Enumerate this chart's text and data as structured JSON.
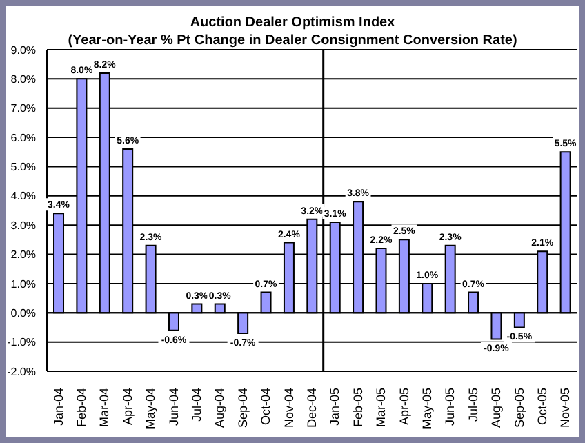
{
  "chart_data": {
    "type": "bar",
    "title": "Auction Dealer Optimism Index",
    "subtitle": "(Year-on-Year % Pt Change in Dealer Consignment Conversion Rate)",
    "categories": [
      "Jan-04",
      "Feb-04",
      "Mar-04",
      "Apr-04",
      "May-04",
      "Jun-04",
      "Jul-04",
      "Aug-04",
      "Sep-04",
      "Oct-04",
      "Nov-04",
      "Dec-04",
      "Jan-05",
      "Feb-05",
      "Mar-05",
      "Apr-05",
      "May-05",
      "Jun-05",
      "Jul-05",
      "Aug-05",
      "Sep-05",
      "Oct-05",
      "Nov-05"
    ],
    "values": [
      3.4,
      8.0,
      8.2,
      5.6,
      2.3,
      -0.6,
      0.3,
      0.3,
      -0.7,
      0.7,
      2.4,
      3.2,
      3.1,
      3.8,
      2.2,
      2.5,
      1.0,
      2.3,
      0.7,
      -0.9,
      -0.5,
      2.1,
      5.5
    ],
    "value_labels": [
      "3.4%",
      "8.0%",
      "8.2%",
      "5.6%",
      "2.3%",
      "-0.6%",
      "0.3%",
      "0.3%",
      "-0.7%",
      "0.7%",
      "2.4%",
      "3.2%",
      "3.1%",
      "3.8%",
      "2.2%",
      "2.5%",
      "1.0%",
      "2.3%",
      "0.7%",
      "-0.9%",
      "-0.5%",
      "2.1%",
      "5.5%"
    ],
    "color": "#9999ff",
    "ylim": [
      -2,
      9
    ],
    "yticks": [
      {
        "value": -2,
        "label": "-2.0%"
      },
      {
        "value": -1,
        "label": "-1.0%"
      },
      {
        "value": 0,
        "label": "0.0%"
      },
      {
        "value": 1,
        "label": "1.0%"
      },
      {
        "value": 2,
        "label": "2.0%"
      },
      {
        "value": 3,
        "label": "3.0%"
      },
      {
        "value": 4,
        "label": "4.0%"
      },
      {
        "value": 5,
        "label": "5.0%"
      },
      {
        "value": 6,
        "label": "6.0%"
      },
      {
        "value": 7,
        "label": "7.0%"
      },
      {
        "value": 8,
        "label": "8.0%"
      },
      {
        "value": 9,
        "label": "9.0%"
      }
    ],
    "grid": "y",
    "ref_lines": [
      {
        "axis": "x",
        "value": "Jan-05",
        "color": "#000000"
      }
    ]
  }
}
